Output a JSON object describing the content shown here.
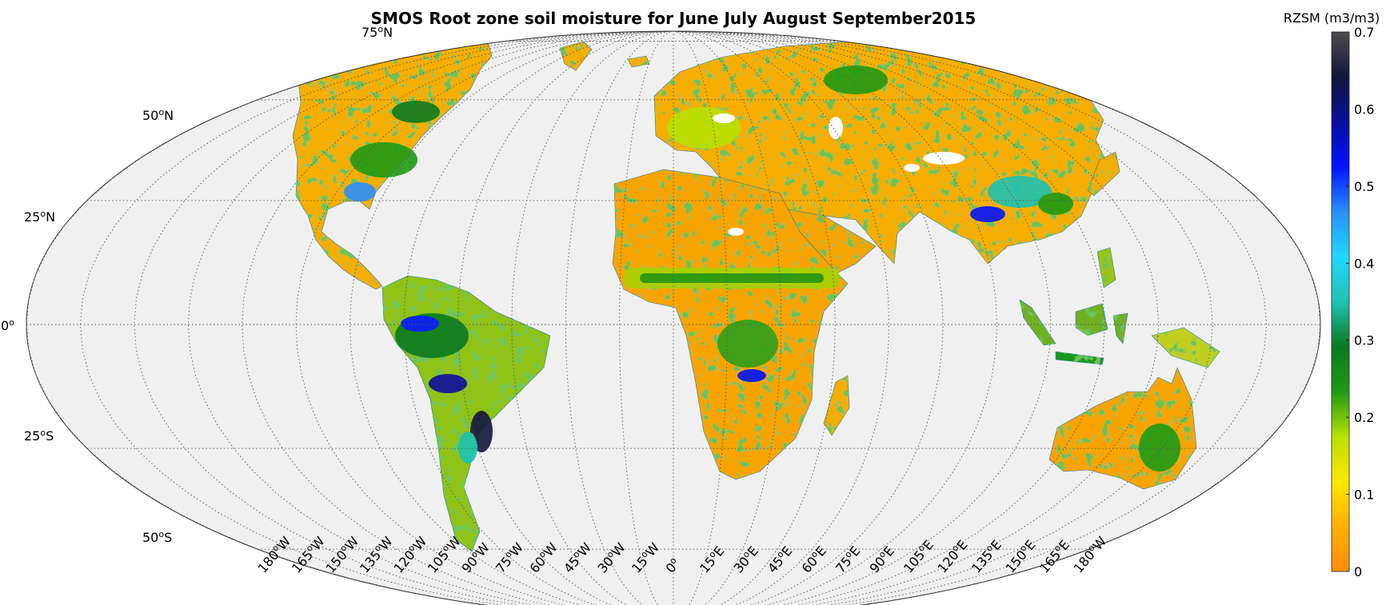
{
  "title": "SMOS Root zone soil moisture for June July August September2015",
  "colorbar": {
    "label": "RZSM (m3/m3)",
    "min": 0,
    "max": 0.7,
    "ticks": [
      "0",
      "0.1",
      "0.2",
      "0.3",
      "0.4",
      "0.5",
      "0.6",
      "0.7"
    ],
    "colors": [
      "#ff8c00",
      "#ffb000",
      "#fde700",
      "#b8e000",
      "#1f9a14",
      "#0a7a20",
      "#1fc2b2",
      "#20d8ff",
      "#2b8fff",
      "#0013ff",
      "#0a0f9e",
      "#14163c",
      "#4b4b4b"
    ]
  },
  "lat_labels": [
    {
      "deg": "75",
      "hem": "N"
    },
    {
      "deg": "50",
      "hem": "N"
    },
    {
      "deg": "25",
      "hem": "N"
    },
    {
      "deg": "0",
      "hem": ""
    },
    {
      "deg": "25",
      "hem": "S"
    },
    {
      "deg": "50",
      "hem": "S"
    }
  ],
  "lon_labels": [
    {
      "deg": "180",
      "hem": "W"
    },
    {
      "deg": "165",
      "hem": "W"
    },
    {
      "deg": "150",
      "hem": "W"
    },
    {
      "deg": "135",
      "hem": "W"
    },
    {
      "deg": "120",
      "hem": "W"
    },
    {
      "deg": "105",
      "hem": "W"
    },
    {
      "deg": "90",
      "hem": "W"
    },
    {
      "deg": "75",
      "hem": "W"
    },
    {
      "deg": "60",
      "hem": "W"
    },
    {
      "deg": "45",
      "hem": "W"
    },
    {
      "deg": "30",
      "hem": "W"
    },
    {
      "deg": "15",
      "hem": "W"
    },
    {
      "deg": "0",
      "hem": ""
    },
    {
      "deg": "15",
      "hem": "E"
    },
    {
      "deg": "30",
      "hem": "E"
    },
    {
      "deg": "45",
      "hem": "E"
    },
    {
      "deg": "60",
      "hem": "E"
    },
    {
      "deg": "75",
      "hem": "E"
    },
    {
      "deg": "90",
      "hem": "E"
    },
    {
      "deg": "105",
      "hem": "E"
    },
    {
      "deg": "120",
      "hem": "E"
    },
    {
      "deg": "135",
      "hem": "E"
    },
    {
      "deg": "150",
      "hem": "E"
    },
    {
      "deg": "165",
      "hem": "E"
    },
    {
      "deg": "180",
      "hem": "W"
    }
  ],
  "colors": {
    "ocean": "#f0f0f0",
    "dry": "#ffa500",
    "coast": "#1e7ab8"
  }
}
